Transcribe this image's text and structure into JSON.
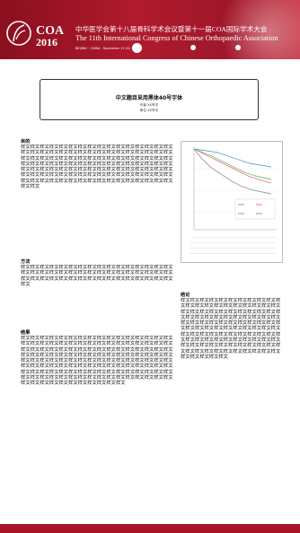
{
  "banner": {
    "logo_text": "COA",
    "logo_year": "2016",
    "title_cn": "中华医学会第十八届骨科学术会议暨第十一届COA国际学术大会",
    "title_en": "The 11th International Congress of Chinese Orthopaedic Association",
    "date_line": "BEIJING · CHINA · November 17-20, 2016",
    "colors": {
      "primary": "#a81428",
      "text": "#ffffff"
    }
  },
  "title_block": {
    "title": "中文题目采用黑体40号字体",
    "authors": "作者  XX号字",
    "affiliation": "单位  XX号字"
  },
  "sections": {
    "objective": {
      "heading": "目的",
      "text": "样文样文样文样文样文样文样文样文样文样文样文样文样文样文样文样文样文样文样文样文样文样文样文样文样文样文样文样文样文样文样文样文样文样文样文样文样文样文样文样文样文样文样文样文样文样文样文样文样文样文样文样文样文样文样文样文样文样文样文样文样文样文样文样文样文样文样文样文样文样文样文样文样文样文样文样文样文样文样文样文样文样文样文样文样文样文样文样文样文样文样文样文样文样文样文样文样文样文样文样文样文样文样文样文样文样文样文样文样文样文样文样文样文样文"
    },
    "methods": {
      "heading": "方法",
      "text": "样文样文样文样文样文样文样文样文样文样文样文样文样文样文样文样文样文样文样文样文样文样文样文样文样文样文样文样文样文样文样文样文样文样文样文样文样文样文样文样文样文样文样文样文样文样文样文样文样文"
    },
    "results": {
      "heading": "结果",
      "text": "样文样文样文样文样文样文样文样文样文样文样文样文样文样文样文样文样文样文样文样文样文样文样文样文样文样文样文样文样文样文样文样文样文样文样文样文样文样文样文样文样文样文样文样文样文样文样文样文样文样文样文样文样文样文样文样文样文样文样文样文样文样文样文样文样文样文样文样文样文样文样文样文样文样文样文样文样文样文样文样文样文样文样文样文样文样文样文样文样文样文样文样文样文样文样文样文样文样文样文样文样文样文样文样文样文样文样文样文样文样文样文样文样文样文样文样文样文样文样文样文样文样文样文样文样文样文样文样文样文样文样文样文样文样文样文样文样文样文样文"
    },
    "conclusion": {
      "heading": "结论",
      "text": "样文样文样文样文样文样文样文样文样文样文样文样文样文样文样文样文样文样文样文样文样文样文样文样文样文样文样文样文样文样文样文样文样文样文样文样文样文样文样文样文样文样文样文样文样文样文样文样文样文样文样文样文样文样文样文样文样文样文样文样文样文样文样文样文样文样文样文样文样文样文样文样文样文样文样文样文样文样文样文样文样文样文样文样文样文样文样文样文样文样文样文样文样文样文样文样文样文样文样文样文样文样文样文样文样文样文样文样文样文样文"
    }
  },
  "figure": {
    "series_colors": [
      "#6aa8d8",
      "#e07a7a",
      "#7ab87a",
      "#999999"
    ]
  }
}
